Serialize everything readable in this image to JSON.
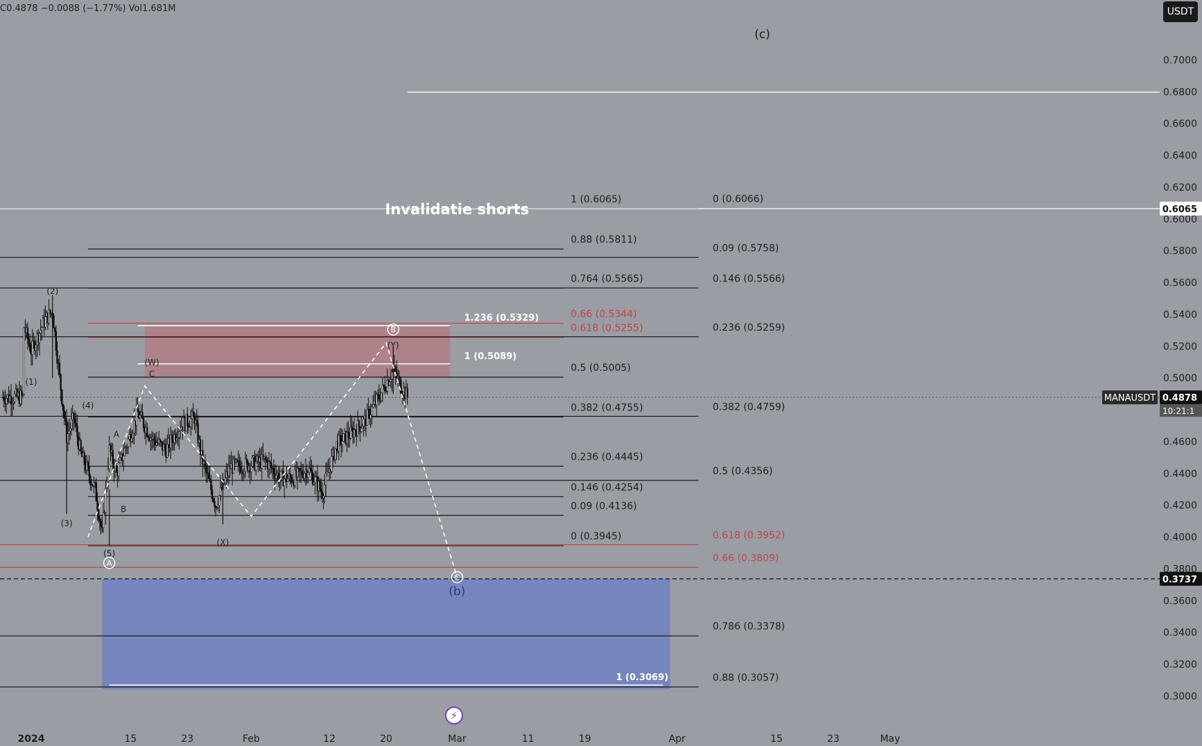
{
  "header": {
    "ohlc_text": "C0.4878  −0.0088 (−1.77%)  Vol1.681M",
    "currency": "USDT"
  },
  "colors": {
    "background": "#9a9da3",
    "pink_zone": "#b07e85",
    "blue_zone": "#7484c0",
    "red_line": "#c0444c",
    "white_line": "#ffffff",
    "black_line": "#1a1a1a"
  },
  "chart_data": {
    "type": "candlestick",
    "symbol": "MANAUSDT",
    "y_axis": {
      "min": 0.29,
      "max": 0.72,
      "ticks": [
        "0.7000",
        "0.6800",
        "0.6600",
        "0.6400",
        "0.6200",
        "0.6000",
        "0.5800",
        "0.5600",
        "0.5400",
        "0.5200",
        "0.5000",
        "0.4800",
        "0.4600",
        "0.4400",
        "0.4200",
        "0.4000",
        "0.3800",
        "0.3600",
        "0.3400",
        "0.3200",
        "0.3000"
      ]
    },
    "x_axis": {
      "start": "2023-12-31",
      "end": "2024-05-04",
      "ticks": [
        {
          "date": "2024-01-01",
          "label": "2024"
        },
        {
          "date": "2024-01-15",
          "label": "15"
        },
        {
          "date": "2024-01-23",
          "label": "23"
        },
        {
          "date": "2024-02-01",
          "label": "Feb"
        },
        {
          "date": "2024-02-12",
          "label": "12"
        },
        {
          "date": "2024-02-20",
          "label": "20"
        },
        {
          "date": "2024-03-01",
          "label": "Mar"
        },
        {
          "date": "2024-03-11",
          "label": "11"
        },
        {
          "date": "2024-03-19",
          "label": "19"
        },
        {
          "date": "2024-04-01",
          "label": "Apr"
        },
        {
          "date": "2024-04-15",
          "label": "15"
        },
        {
          "date": "2024-04-23",
          "label": "23"
        },
        {
          "date": "2024-05-01",
          "label": "May"
        }
      ]
    },
    "price_labels": [
      {
        "value": 0.6065,
        "text": "0.6065",
        "style": "white"
      },
      {
        "value": 0.4878,
        "text": "0.4878",
        "style": "dark",
        "symbol": "MANAUSDT",
        "countdown": "10:21:1"
      },
      {
        "value": 0.3737,
        "text": "0.3737",
        "style": "dark"
      }
    ],
    "candles_summary": {
      "anchors": [
        {
          "date": "2023-12-31",
          "price": 0.532
        },
        {
          "date": "2024-01-01",
          "price": 0.517
        },
        {
          "date": "2024-01-03",
          "price": 0.537
        },
        {
          "date": "2024-01-04",
          "price": 0.542
        },
        {
          "date": "2024-01-05",
          "price": 0.5
        },
        {
          "date": "2024-01-06",
          "price": 0.463
        },
        {
          "date": "2024-01-07",
          "price": 0.475
        },
        {
          "date": "2024-01-08",
          "price": 0.452
        },
        {
          "date": "2024-01-10",
          "price": 0.43
        },
        {
          "date": "2024-01-11",
          "price": 0.402
        },
        {
          "date": "2024-01-12",
          "price": 0.455
        },
        {
          "date": "2024-01-13",
          "price": 0.44
        },
        {
          "date": "2024-01-15",
          "price": 0.465
        },
        {
          "date": "2024-01-16",
          "price": 0.478
        },
        {
          "date": "2024-01-18",
          "price": 0.462
        },
        {
          "date": "2024-01-20",
          "price": 0.455
        },
        {
          "date": "2024-01-22",
          "price": 0.47
        },
        {
          "date": "2024-01-24",
          "price": 0.475
        },
        {
          "date": "2024-01-25",
          "price": 0.45
        },
        {
          "date": "2024-01-27",
          "price": 0.42
        },
        {
          "date": "2024-01-29",
          "price": 0.444
        },
        {
          "date": "2024-01-31",
          "price": 0.445
        },
        {
          "date": "2024-02-03",
          "price": 0.448
        },
        {
          "date": "2024-02-05",
          "price": 0.437
        },
        {
          "date": "2024-02-07",
          "price": 0.437
        },
        {
          "date": "2024-02-09",
          "price": 0.443
        },
        {
          "date": "2024-02-11",
          "price": 0.428
        },
        {
          "date": "2024-02-13",
          "price": 0.458
        },
        {
          "date": "2024-02-15",
          "price": 0.465
        },
        {
          "date": "2024-02-17",
          "price": 0.473
        },
        {
          "date": "2024-02-19",
          "price": 0.488
        },
        {
          "date": "2024-02-21",
          "price": 0.505
        },
        {
          "date": "2024-02-22",
          "price": 0.496
        },
        {
          "date": "2024-02-23",
          "price": 0.488
        }
      ],
      "overall_high": 0.5517,
      "overall_low": 0.3945,
      "last_close": 0.4878
    },
    "annotations": {
      "wave_labels": [
        {
          "text": "(1)",
          "date": "2024-01-01",
          "price": 0.498
        },
        {
          "text": "(2)",
          "date": "2024-01-04",
          "price": 0.555
        },
        {
          "text": "(3)",
          "date": "2024-01-06",
          "price": 0.409
        },
        {
          "text": "(4)",
          "date": "2024-01-09",
          "price": 0.483
        },
        {
          "text": "(5)",
          "date": "2024-01-12",
          "price": 0.39
        },
        {
          "text": "A",
          "date": "2024-01-13",
          "price": 0.465
        },
        {
          "text": "B",
          "date": "2024-01-14",
          "price": 0.418
        },
        {
          "text": "C",
          "date": "2024-01-18",
          "price": 0.503
        },
        {
          "text": "(W)",
          "date": "2024-01-18",
          "price": 0.51
        },
        {
          "text": "(X)",
          "date": "2024-01-28",
          "price": 0.397
        },
        {
          "text": "(Y)",
          "date": "2024-02-21",
          "price": 0.521
        },
        {
          "text": "(b)",
          "date": "2024-03-01",
          "price": 0.3655
        },
        {
          "text": "(c)",
          "date": "2024-04-13",
          "price": 0.7158
        },
        {
          "text": "Invalidatie shorts",
          "date": "2024-03-01",
          "price": 0.6065
        }
      ],
      "circled_labels": [
        {
          "text": "A",
          "date": "2024-01-12",
          "price": 0.3837
        },
        {
          "text": "B",
          "date": "2024-02-21",
          "price": 0.5305
        },
        {
          "text": "C",
          "date": "2024-03-01",
          "price": 0.3747
        }
      ],
      "fib_levels": [
        {
          "label": "1 (0.6065)",
          "value": 0.6065,
          "color": "black"
        },
        {
          "label": "0.88 (0.5811)",
          "value": 0.5811,
          "color": "black"
        },
        {
          "label": "0.764 (0.5565)",
          "value": 0.5565,
          "color": "black"
        },
        {
          "label": "0.66 (0.5344)",
          "value": 0.5344,
          "color": "red"
        },
        {
          "label": "0.618 (0.5255)",
          "value": 0.5255,
          "color": "red"
        },
        {
          "label": "0.5 (0.5005)",
          "value": 0.5005,
          "color": "black"
        },
        {
          "label": "0.382 (0.4755)",
          "value": 0.4755,
          "color": "black"
        },
        {
          "label": "0.236 (0.4445)",
          "value": 0.4445,
          "color": "black"
        },
        {
          "label": "0.146 (0.4254)",
          "value": 0.4254,
          "color": "black"
        },
        {
          "label": "0.09 (0.4136)",
          "value": 0.4136,
          "color": "black"
        },
        {
          "label": "0 (0.3945)",
          "value": 0.3945,
          "color": "black"
        }
      ],
      "fib_levels_right": [
        {
          "label": "0 (0.6066)",
          "value": 0.6066,
          "color": "black"
        },
        {
          "label": "0.09 (0.5758)",
          "value": 0.5758,
          "color": "black"
        },
        {
          "label": "0.146 (0.5566)",
          "value": 0.5566,
          "color": "black"
        },
        {
          "label": "0.236 (0.5259)",
          "value": 0.5259,
          "color": "black"
        },
        {
          "label": "0.382 (0.4759)",
          "value": 0.4759,
          "color": "black"
        },
        {
          "label": "0.5 (0.4356)",
          "value": 0.4356,
          "color": "black"
        },
        {
          "label": "0.618 (0.3952)",
          "value": 0.3952,
          "color": "red"
        },
        {
          "label": "0.66 (0.3809)",
          "value": 0.3809,
          "color": "red"
        },
        {
          "label": "0.786 (0.3378)",
          "value": 0.3378,
          "color": "black"
        },
        {
          "label": "0.88 (0.3057)",
          "value": 0.3057,
          "color": "black"
        }
      ],
      "ext_levels": [
        {
          "label": "1.236 (0.5329)",
          "value": 0.5329
        },
        {
          "label": "1 (0.5089)",
          "value": 0.5089
        },
        {
          "label": "1 (0.3069)",
          "value": 0.3069
        }
      ],
      "zones": [
        {
          "name": "resistance-zone",
          "from": "2024-01-17",
          "to": "2024-02-29",
          "top": 0.5329,
          "bottom": 0.5005
        },
        {
          "name": "target-zone",
          "from": "2024-01-11",
          "to": "2024-03-31",
          "top": 0.3737,
          "bottom": 0.3042
        }
      ],
      "projection_path": [
        {
          "date": "2024-01-09",
          "price": 0.4
        },
        {
          "date": "2024-01-17",
          "price": 0.495
        },
        {
          "date": "2024-02-01",
          "price": 0.413
        },
        {
          "date": "2024-02-20",
          "price": 0.522
        },
        {
          "date": "2024-03-01",
          "price": 0.3747
        }
      ]
    }
  }
}
